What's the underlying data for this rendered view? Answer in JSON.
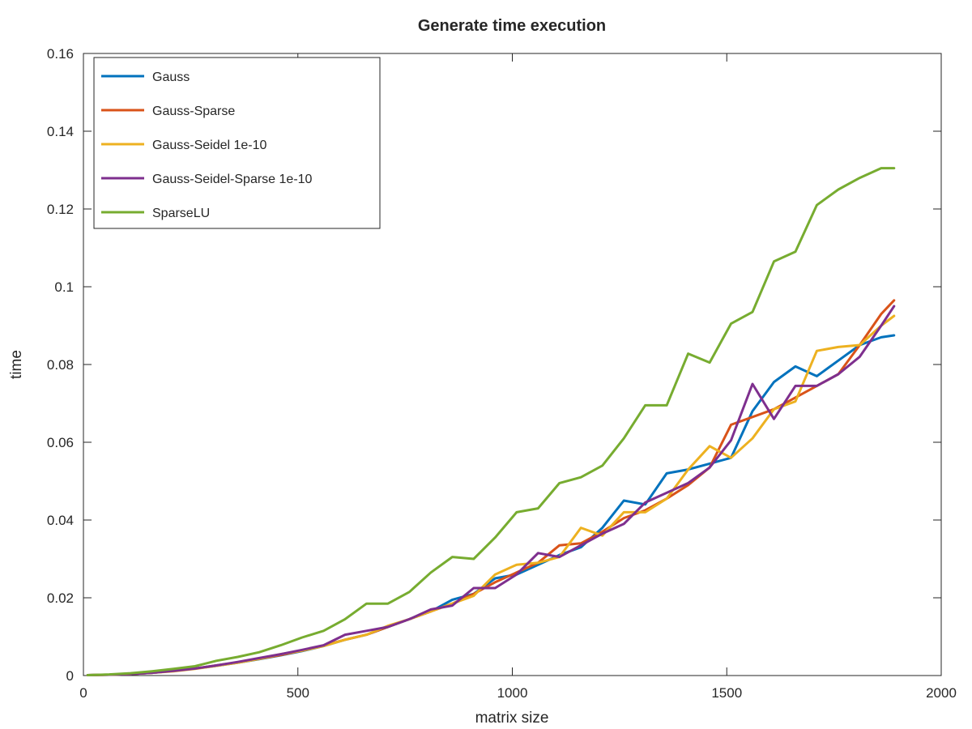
{
  "chart_data": {
    "type": "line",
    "title": "Generate time execution",
    "xlabel": "matrix size",
    "ylabel": "time",
    "xlim": [
      0,
      2000
    ],
    "ylim": [
      0,
      0.16
    ],
    "xticks": [
      0,
      500,
      1000,
      1500,
      2000
    ],
    "yticks": [
      0,
      0.02,
      0.04,
      0.06,
      0.08,
      0.1,
      0.12,
      0.14,
      0.16
    ],
    "xtick_labels": [
      "0",
      "500",
      "1000",
      "1500",
      "2000"
    ],
    "ytick_labels": [
      "0",
      "0.02",
      "0.04",
      "0.06",
      "0.08",
      "0.1",
      "0.12",
      "0.14",
      "0.16"
    ],
    "grid": false,
    "legend_position": "top-left",
    "x": [
      10,
      60,
      110,
      160,
      210,
      260,
      310,
      360,
      410,
      460,
      510,
      560,
      610,
      660,
      710,
      760,
      810,
      860,
      910,
      960,
      1010,
      1060,
      1110,
      1160,
      1210,
      1260,
      1310,
      1360,
      1410,
      1460,
      1510,
      1560,
      1610,
      1660,
      1710,
      1760,
      1810,
      1860,
      1890
    ],
    "series": [
      {
        "name": "Gauss",
        "color": "#0072BD",
        "values": [
          0.0001,
          0.0002,
          0.0004,
          0.0007,
          0.0012,
          0.0018,
          0.0025,
          0.0033,
          0.0042,
          0.0052,
          0.0063,
          0.0076,
          0.0092,
          0.0105,
          0.0125,
          0.0145,
          0.0165,
          0.0195,
          0.021,
          0.025,
          0.026,
          0.0285,
          0.031,
          0.033,
          0.038,
          0.045,
          0.044,
          0.052,
          0.053,
          0.0545,
          0.056,
          0.068,
          0.0755,
          0.0795,
          0.077,
          0.081,
          0.085,
          0.087,
          0.0875
        ]
      },
      {
        "name": "Gauss-Sparse",
        "color": "#D95319",
        "values": [
          0.0001,
          0.0002,
          0.0004,
          0.0007,
          0.0012,
          0.0018,
          0.0026,
          0.0034,
          0.0043,
          0.0053,
          0.0064,
          0.0077,
          0.0092,
          0.0105,
          0.0125,
          0.0145,
          0.0165,
          0.0185,
          0.021,
          0.024,
          0.0265,
          0.029,
          0.0335,
          0.034,
          0.037,
          0.0405,
          0.0425,
          0.0455,
          0.049,
          0.0535,
          0.0645,
          0.0665,
          0.0685,
          0.0715,
          0.0745,
          0.0775,
          0.085,
          0.093,
          0.0965
        ]
      },
      {
        "name": "Gauss-Seidel 1e-10",
        "color": "#EDB120",
        "values": [
          0.0001,
          0.0002,
          0.0004,
          0.0007,
          0.0011,
          0.0017,
          0.0025,
          0.0033,
          0.0043,
          0.0055,
          0.0064,
          0.0076,
          0.0092,
          0.0105,
          0.0128,
          0.0145,
          0.0165,
          0.0185,
          0.0205,
          0.026,
          0.0285,
          0.029,
          0.0305,
          0.038,
          0.036,
          0.042,
          0.042,
          0.0455,
          0.053,
          0.059,
          0.056,
          0.061,
          0.0685,
          0.0705,
          0.0835,
          0.0845,
          0.085,
          0.09,
          0.0925
        ]
      },
      {
        "name": "Gauss-Seidel-Sparse 1e-10",
        "color": "#7E2F8E",
        "values": [
          0.0001,
          0.0002,
          0.0004,
          0.0007,
          0.0012,
          0.0018,
          0.0026,
          0.0035,
          0.0045,
          0.0055,
          0.0066,
          0.0078,
          0.0105,
          0.0115,
          0.0125,
          0.0145,
          0.017,
          0.018,
          0.0225,
          0.0225,
          0.026,
          0.0315,
          0.0305,
          0.0335,
          0.0365,
          0.039,
          0.0445,
          0.047,
          0.0495,
          0.0535,
          0.0605,
          0.075,
          0.066,
          0.0745,
          0.0745,
          0.0775,
          0.082,
          0.09,
          0.095
        ]
      },
      {
        "name": "SparseLU",
        "color": "#77AC30",
        "values": [
          0.0001,
          0.0003,
          0.0006,
          0.0011,
          0.0017,
          0.0024,
          0.0038,
          0.0048,
          0.006,
          0.0078,
          0.0098,
          0.0115,
          0.0145,
          0.0185,
          0.0185,
          0.0215,
          0.0265,
          0.0305,
          0.03,
          0.0355,
          0.042,
          0.043,
          0.0495,
          0.051,
          0.054,
          0.061,
          0.0695,
          0.0695,
          0.0828,
          0.0805,
          0.0905,
          0.0935,
          0.1065,
          0.109,
          0.121,
          0.125,
          0.128,
          0.1305,
          0.1305
        ]
      }
    ]
  }
}
